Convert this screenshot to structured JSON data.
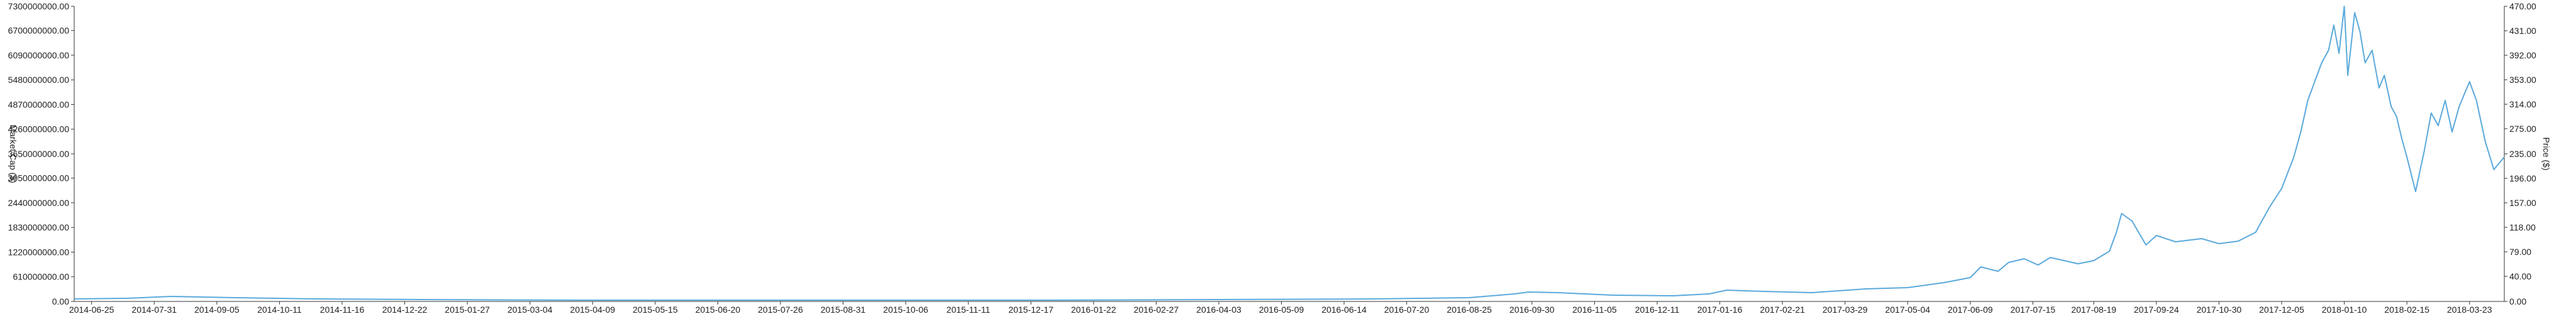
{
  "chart_data": {
    "type": "line",
    "title": "",
    "xlabel": "",
    "ylabel_left": "Market Cap ($)",
    "ylabel_right": "Price ($)",
    "grid": false,
    "colors": {
      "series": "#5aa9dc",
      "axis": "#333333",
      "text": "#222222"
    },
    "x_ticks": [
      "2014-06-25",
      "2014-07-31",
      "2014-09-05",
      "2014-10-11",
      "2014-11-16",
      "2014-12-22",
      "2015-01-27",
      "2015-03-04",
      "2015-04-09",
      "2015-05-15",
      "2015-06-20",
      "2015-07-26",
      "2015-08-31",
      "2015-10-06",
      "2015-11-11",
      "2015-12-17",
      "2016-01-22",
      "2016-02-27",
      "2016-04-03",
      "2016-05-09",
      "2016-06-14",
      "2016-07-20",
      "2016-08-25",
      "2016-09-30",
      "2016-11-05",
      "2016-12-11",
      "2017-01-16",
      "2017-02-21",
      "2017-03-29",
      "2017-05-04",
      "2017-06-09",
      "2017-07-15",
      "2017-08-19",
      "2017-09-24",
      "2017-10-30",
      "2017-12-05",
      "2018-01-10",
      "2018-02-15",
      "2018-03-23"
    ],
    "x_range": [
      "2014-06-15",
      "2018-04-12"
    ],
    "y_left": {
      "ticks": [
        "0.00",
        "610000000.00",
        "1220000000.00",
        "1830000000.00",
        "2440000000.00",
        "3050000000.00",
        "3650000000.00",
        "4260000000.00",
        "4870000000.00",
        "5480000000.00",
        "6090000000.00",
        "6700000000.00",
        "7300000000.00"
      ],
      "range": [
        0,
        7300000000
      ]
    },
    "y_right": {
      "ticks": [
        "0.00",
        "40.00",
        "79.00",
        "118.00",
        "157.00",
        "196.00",
        "235.00",
        "275.00",
        "314.00",
        "353.00",
        "392.00",
        "431.00",
        "470.00"
      ],
      "range": [
        0,
        470
      ]
    },
    "series": [
      {
        "axis": "right",
        "x": [
          "2014-06-15",
          "2014-07-15",
          "2014-08-10",
          "2014-09-15",
          "2014-11-01",
          "2015-01-01",
          "2015-04-01",
          "2015-07-01",
          "2015-10-01",
          "2016-01-01",
          "2016-04-01",
          "2016-07-01",
          "2016-08-25",
          "2016-09-20",
          "2016-09-28",
          "2016-10-15",
          "2016-11-15",
          "2016-12-20",
          "2017-01-10",
          "2017-01-20",
          "2017-02-10",
          "2017-03-10",
          "2017-04-10",
          "2017-05-04",
          "2017-05-25",
          "2017-06-09",
          "2017-06-15",
          "2017-06-25",
          "2017-07-01",
          "2017-07-10",
          "2017-07-18",
          "2017-07-25",
          "2017-08-10",
          "2017-08-19",
          "2017-08-28",
          "2017-09-01",
          "2017-09-04",
          "2017-09-10",
          "2017-09-18",
          "2017-09-24",
          "2017-10-05",
          "2017-10-20",
          "2017-10-30",
          "2017-11-10",
          "2017-11-20",
          "2017-11-28",
          "2017-12-05",
          "2017-12-12",
          "2017-12-16",
          "2017-12-20",
          "2017-12-24",
          "2017-12-28",
          "2018-01-01",
          "2018-01-04",
          "2018-01-07",
          "2018-01-10",
          "2018-01-12",
          "2018-01-16",
          "2018-01-19",
          "2018-01-22",
          "2018-01-26",
          "2018-01-30",
          "2018-02-02",
          "2018-02-06",
          "2018-02-09",
          "2018-02-12",
          "2018-02-15",
          "2018-02-20",
          "2018-02-25",
          "2018-03-01",
          "2018-03-05",
          "2018-03-09",
          "2018-03-13",
          "2018-03-17",
          "2018-03-23",
          "2018-03-27",
          "2018-04-01",
          "2018-04-06",
          "2018-04-12"
        ],
        "values": [
          4,
          5,
          8,
          6,
          4,
          3,
          2,
          2,
          2,
          2,
          3,
          4,
          6,
          12,
          15,
          14,
          10,
          9,
          12,
          18,
          16,
          14,
          20,
          22,
          30,
          38,
          55,
          48,
          62,
          68,
          58,
          70,
          60,
          65,
          80,
          110,
          140,
          128,
          90,
          105,
          95,
          100,
          92,
          96,
          110,
          150,
          180,
          230,
          270,
          320,
          350,
          380,
          400,
          440,
          395,
          470,
          360,
          460,
          430,
          380,
          400,
          340,
          360,
          310,
          295,
          260,
          230,
          175,
          240,
          300,
          280,
          320,
          270,
          310,
          350,
          320,
          255,
          210,
          230
        ]
      }
    ]
  }
}
